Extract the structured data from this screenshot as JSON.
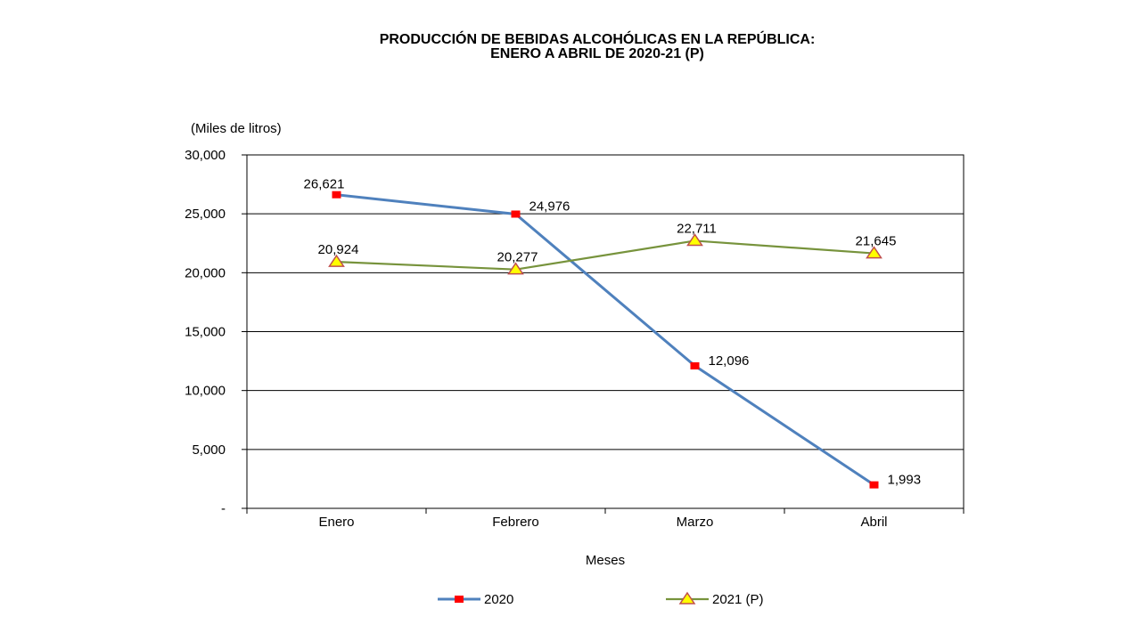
{
  "chart_data": {
    "type": "line",
    "title": "PRODUCCIÓN DE BEBIDAS ALCOHÓLICAS EN LA REPÚBLICA:",
    "subtitle": "ENERO A ABRIL DE 2020-21 (P)",
    "xlabel": "Meses",
    "ylabel": "(Miles de litros)",
    "categories": [
      "Enero",
      "Febrero",
      "Marzo",
      "Abril"
    ],
    "ylim": [
      0,
      30000
    ],
    "yticks": [
      0,
      5000,
      10000,
      15000,
      20000,
      25000,
      30000
    ],
    "ytick_labels": [
      "-",
      "5,000",
      "10,000",
      "15,000",
      "20,000",
      "25,000",
      "30,000"
    ],
    "grid": true,
    "legend_position": "bottom",
    "series": [
      {
        "name": "2020",
        "values": [
          26621,
          24976,
          12096,
          1993
        ],
        "labels": [
          "26,621",
          "24,976",
          "12,096",
          "1,993"
        ],
        "color": "#4F81BD",
        "marker": "square",
        "marker_color": "#FF0000"
      },
      {
        "name": "2021 (P)",
        "values": [
          20924,
          20277,
          22711,
          21645
        ],
        "labels": [
          "20,924",
          "20,277",
          "22,711",
          "21,645"
        ],
        "color": "#77933C",
        "marker": "triangle",
        "marker_color": "#FFFF00",
        "marker_edge": "#C0504D"
      }
    ]
  }
}
